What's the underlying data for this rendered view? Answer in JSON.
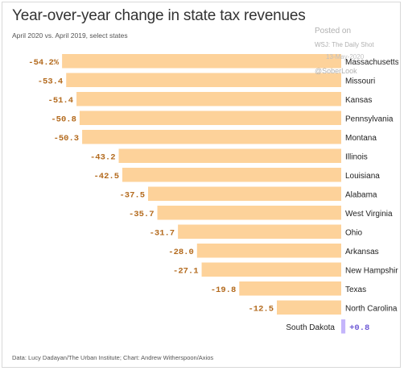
{
  "header": {
    "title": "Year-over-year change in state tax revenues",
    "subtitle": "April 2020 vs. April 2019, select states"
  },
  "watermark": {
    "line1": "Posted on",
    "line2": "WSJ: The Daily Shot",
    "line3": "13-May-2020",
    "line4": "@SoberLook"
  },
  "footer": {
    "source": "Data: Lucy Dadayan/The Urban Institute; Chart: Andrew Witherspoon/Axios"
  },
  "colors": {
    "negative_bar": "#fdd29a",
    "positive_bar": "#c4b5fb",
    "negative_label": "#b36a1d",
    "positive_label": "#6f5bd6",
    "state_label": "#222222"
  },
  "chart_data": {
    "type": "bar",
    "orientation": "horizontal",
    "title": "Year-over-year change in state tax revenues",
    "subtitle": "April 2020 vs. April 2019, select states",
    "categories": [
      "Massachusetts",
      "Missouri",
      "Kansas",
      "Pennsylvania",
      "Montana",
      "Illinois",
      "Louisiana",
      "Alabama",
      "West Virginia",
      "Ohio",
      "Arkansas",
      "New Hampshire",
      "Texas",
      "North Carolina",
      "South Dakota"
    ],
    "values": [
      -54.2,
      -53.4,
      -51.4,
      -50.8,
      -50.3,
      -43.2,
      -42.5,
      -37.5,
      -35.7,
      -31.7,
      -28.0,
      -27.1,
      -19.8,
      -12.5,
      0.8
    ],
    "value_labels": [
      "-54.2%",
      "-53.4",
      "-51.4",
      "-50.8",
      "-50.3",
      "-43.2",
      "-42.5",
      "-37.5",
      "-35.7",
      "-31.7",
      "-28.0",
      "-27.1",
      "-19.8",
      "-12.5",
      "+0.8"
    ],
    "xlim": [
      -57,
      0
    ],
    "grid": false,
    "legend": "none"
  }
}
